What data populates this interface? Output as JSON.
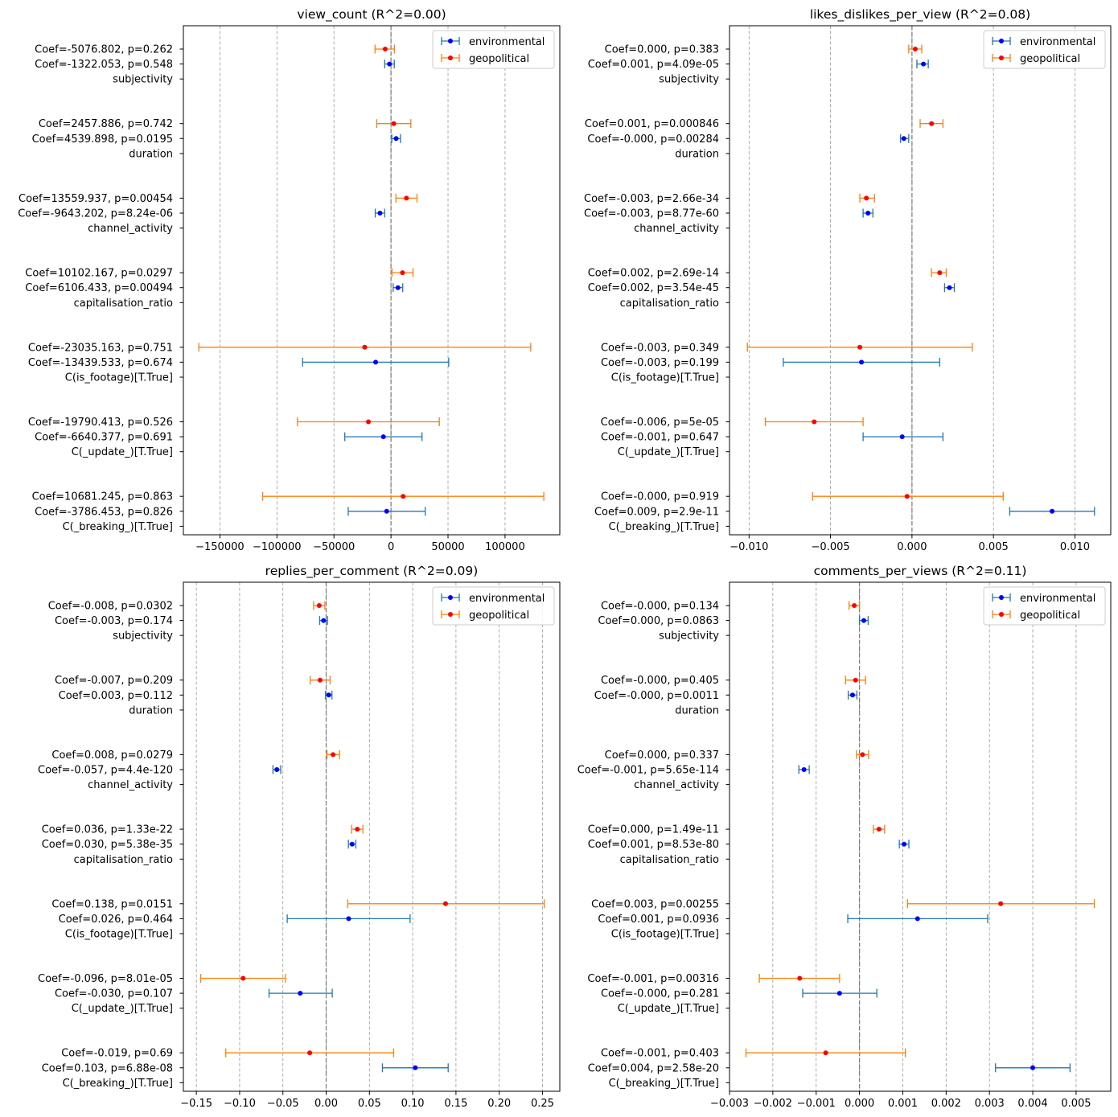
{
  "chart_data": [
    {
      "type": "errorbar",
      "title": "view_count (R^2=0.00)",
      "xlim": [
        -182000,
        148000
      ],
      "xticks": [
        -150000,
        -100000,
        -50000,
        0,
        50000,
        100000
      ],
      "xtick_labels": [
        "−150000",
        "−100000",
        "−50000",
        "0",
        "50000",
        "100000"
      ],
      "grid_x": true,
      "legend_position": "top-right",
      "series": [
        {
          "name": "environmental",
          "color": "#1f77b4",
          "marker_color": "#0000ff"
        },
        {
          "name": "geopolitical",
          "color": "#ff7f0e",
          "marker_color": "#ff0000"
        }
      ],
      "variables": [
        {
          "name": "subjectivity",
          "env": {
            "coef": -1322.053,
            "lo": -5500,
            "hi": 2900,
            "label": "Coef=-1322.053, p=0.548"
          },
          "geo": {
            "coef": -5076.802,
            "lo": -14000,
            "hi": 3000,
            "label": "Coef=-5076.802, p=0.262"
          }
        },
        {
          "name": "duration",
          "env": {
            "coef": 4539.898,
            "lo": 700,
            "hi": 8300,
            "label": "Coef=4539.898, p=0.0195"
          },
          "geo": {
            "coef": 2457.886,
            "lo": -12500,
            "hi": 17400,
            "label": "Coef=2457.886, p=0.742"
          }
        },
        {
          "name": "channel_activity",
          "env": {
            "coef": -9643.202,
            "lo": -13800,
            "hi": -5500,
            "label": "Coef=-9643.202, p=8.24e-06"
          },
          "geo": {
            "coef": 13559.937,
            "lo": 4300,
            "hi": 22800,
            "label": "Coef=13559.937, p=0.00454"
          }
        },
        {
          "name": "capitalisation_ratio",
          "env": {
            "coef": 6106.433,
            "lo": 1900,
            "hi": 10300,
            "label": "Coef=6106.433, p=0.00494"
          },
          "geo": {
            "coef": 10102.167,
            "lo": 900,
            "hi": 19300,
            "label": "Coef=10102.167, p=0.0297"
          }
        },
        {
          "name": "C(is_footage)[T.True]",
          "env": {
            "coef": -13439.533,
            "lo": -77500,
            "hi": 50600,
            "label": "Coef=-13439.533, p=0.674"
          },
          "geo": {
            "coef": -23035.163,
            "lo": -168500,
            "hi": 122500,
            "label": "Coef=-23035.163, p=0.751"
          }
        },
        {
          "name": "C(_update_)[T.True]",
          "env": {
            "coef": -6640.377,
            "lo": -40500,
            "hi": 27200,
            "label": "Coef=-6640.377, p=0.691"
          },
          "geo": {
            "coef": -19790.413,
            "lo": -82000,
            "hi": 42400,
            "label": "Coef=-19790.413, p=0.526"
          }
        },
        {
          "name": "C(_breaking_)[T.True]",
          "env": {
            "coef": -3786.453,
            "lo": -37500,
            "hi": 30000,
            "label": "Coef=-3786.453, p=0.826"
          },
          "geo": {
            "coef": 10681.245,
            "lo": -112500,
            "hi": 134000,
            "label": "Coef=10681.245, p=0.863"
          }
        }
      ]
    },
    {
      "type": "errorbar",
      "title": "likes_dislikes_per_view (R^2=0.08)",
      "xlim": [
        -0.0112,
        0.0122
      ],
      "xticks": [
        -0.01,
        -0.005,
        0,
        0.005,
        0.01
      ],
      "xtick_labels": [
        "−0.010",
        "−0.005",
        "0.000",
        "0.005",
        "0.010"
      ],
      "grid_x": true,
      "legend_position": "top-right",
      "series": [
        {
          "name": "environmental",
          "color": "#1f77b4",
          "marker_color": "#0000ff"
        },
        {
          "name": "geopolitical",
          "color": "#ff7f0e",
          "marker_color": "#ff0000"
        }
      ],
      "variables": [
        {
          "name": "subjectivity",
          "env": {
            "coef": 0.0007,
            "lo": 0.0003,
            "hi": 0.001,
            "label": "Coef=0.001, p=4.09e-05"
          },
          "geo": {
            "coef": 0.0002,
            "lo": -0.0002,
            "hi": 0.0006,
            "label": "Coef=0.000, p=0.383"
          }
        },
        {
          "name": "duration",
          "env": {
            "coef": -0.0005,
            "lo": -0.0007,
            "hi": -0.0002,
            "label": "Coef=-0.000, p=0.00284"
          },
          "geo": {
            "coef": 0.0012,
            "lo": 0.0005,
            "hi": 0.0019,
            "label": "Coef=0.001, p=0.000846"
          }
        },
        {
          "name": "channel_activity",
          "env": {
            "coef": -0.0027,
            "lo": -0.003,
            "hi": -0.0024,
            "label": "Coef=-0.003, p=8.77e-60"
          },
          "geo": {
            "coef": -0.0028,
            "lo": -0.0032,
            "hi": -0.0023,
            "label": "Coef=-0.003, p=2.66e-34"
          }
        },
        {
          "name": "capitalisation_ratio",
          "env": {
            "coef": 0.0023,
            "lo": 0.002,
            "hi": 0.0026,
            "label": "Coef=0.002, p=3.54e-45"
          },
          "geo": {
            "coef": 0.0017,
            "lo": 0.0012,
            "hi": 0.0021,
            "label": "Coef=0.002, p=2.69e-14"
          }
        },
        {
          "name": "C(is_footage)[T.True]",
          "env": {
            "coef": -0.0031,
            "lo": -0.0079,
            "hi": 0.0017,
            "label": "Coef=-0.003, p=0.199"
          },
          "geo": {
            "coef": -0.0032,
            "lo": -0.0101,
            "hi": 0.0037,
            "label": "Coef=-0.003, p=0.349"
          }
        },
        {
          "name": "C(_update_)[T.True]",
          "env": {
            "coef": -0.0006,
            "lo": -0.003,
            "hi": 0.0019,
            "label": "Coef=-0.001, p=0.647"
          },
          "geo": {
            "coef": -0.006,
            "lo": -0.009,
            "hi": -0.003,
            "label": "Coef=-0.006, p=5e-05"
          }
        },
        {
          "name": "C(_breaking_)[T.True]",
          "env": {
            "coef": 0.0086,
            "lo": 0.006,
            "hi": 0.0112,
            "label": "Coef=0.009, p=2.9e-11"
          },
          "geo": {
            "coef": -0.0003,
            "lo": -0.0061,
            "hi": 0.0056,
            "label": "Coef=-0.000, p=0.919"
          }
        }
      ]
    },
    {
      "type": "errorbar",
      "title": "replies_per_comment (R^2=0.09)",
      "xlim": [
        -0.165,
        0.27
      ],
      "xticks": [
        -0.15,
        -0.1,
        -0.05,
        0,
        0.05,
        0.1,
        0.15,
        0.2,
        0.25
      ],
      "xtick_labels": [
        "−0.15",
        "−0.10",
        "−0.05",
        "0.00",
        "0.05",
        "0.10",
        "0.15",
        "0.20",
        "0.25"
      ],
      "grid_x": true,
      "legend_position": "top-right",
      "series": [
        {
          "name": "environmental",
          "color": "#1f77b4",
          "marker_color": "#0000ff"
        },
        {
          "name": "geopolitical",
          "color": "#ff7f0e",
          "marker_color": "#ff0000"
        }
      ],
      "variables": [
        {
          "name": "subjectivity",
          "env": {
            "coef": -0.003,
            "lo": -0.0075,
            "hi": 0.0015,
            "label": "Coef=-0.003, p=0.174"
          },
          "geo": {
            "coef": -0.008,
            "lo": -0.0145,
            "hi": -0.0015,
            "label": "Coef=-0.008, p=0.0302"
          }
        },
        {
          "name": "duration",
          "env": {
            "coef": 0.003,
            "lo": -0.0007,
            "hi": 0.0067,
            "label": "Coef=0.003, p=0.112"
          },
          "geo": {
            "coef": -0.007,
            "lo": -0.0185,
            "hi": 0.0045,
            "label": "Coef=-0.007, p=0.209"
          }
        },
        {
          "name": "channel_activity",
          "env": {
            "coef": -0.057,
            "lo": -0.0615,
            "hi": -0.0525,
            "label": "Coef=-0.057, p=4.4e-120"
          },
          "geo": {
            "coef": 0.008,
            "lo": 0.001,
            "hi": 0.0155,
            "label": "Coef=0.008, p=0.0279"
          }
        },
        {
          "name": "capitalisation_ratio",
          "env": {
            "coef": 0.03,
            "lo": 0.0257,
            "hi": 0.0343,
            "label": "Coef=0.030, p=5.38e-35"
          },
          "geo": {
            "coef": 0.036,
            "lo": 0.0295,
            "hi": 0.0425,
            "label": "Coef=0.036, p=1.33e-22"
          }
        },
        {
          "name": "C(is_footage)[T.True]",
          "env": {
            "coef": 0.026,
            "lo": -0.045,
            "hi": 0.097,
            "label": "Coef=0.026, p=0.464"
          },
          "geo": {
            "coef": 0.138,
            "lo": 0.025,
            "hi": 0.252,
            "label": "Coef=0.138, p=0.0151"
          }
        },
        {
          "name": "C(_update_)[T.True]",
          "env": {
            "coef": -0.03,
            "lo": -0.066,
            "hi": 0.007,
            "label": "Coef=-0.030, p=0.107"
          },
          "geo": {
            "coef": -0.096,
            "lo": -0.145,
            "hi": -0.047,
            "label": "Coef=-0.096, p=8.01e-05"
          }
        },
        {
          "name": "C(_breaking_)[T.True]",
          "env": {
            "coef": 0.103,
            "lo": 0.065,
            "hi": 0.141,
            "label": "Coef=0.103, p=6.88e-08"
          },
          "geo": {
            "coef": -0.019,
            "lo": -0.116,
            "hi": 0.078,
            "label": "Coef=-0.019, p=0.69"
          }
        }
      ]
    },
    {
      "type": "errorbar",
      "title": "comments_per_views (R^2=0.11)",
      "xlim": [
        -0.003,
        0.0058
      ],
      "xticks": [
        -0.003,
        -0.002,
        -0.001,
        0,
        0.001,
        0.002,
        0.003,
        0.004,
        0.005
      ],
      "xtick_labels": [
        "−0.003",
        "−0.002",
        "−0.001",
        "0.000",
        "0.001",
        "0.002",
        "0.003",
        "0.004",
        "0.005"
      ],
      "grid_x": true,
      "legend_position": "top-right",
      "series": [
        {
          "name": "environmental",
          "color": "#1f77b4",
          "marker_color": "#0000ff"
        },
        {
          "name": "geopolitical",
          "color": "#ff7f0e",
          "marker_color": "#ff0000"
        }
      ],
      "variables": [
        {
          "name": "subjectivity",
          "env": {
            "coef": 0.0001,
            "lo": 0.0,
            "hi": 0.0002,
            "label": "Coef=0.000, p=0.0863"
          },
          "geo": {
            "coef": -0.00012,
            "lo": -0.00024,
            "hi": 0.0,
            "label": "Coef=-0.000, p=0.134"
          }
        },
        {
          "name": "duration",
          "env": {
            "coef": -0.00016,
            "lo": -0.00026,
            "hi": -6e-05,
            "label": "Coef=-0.000, p=0.0011"
          },
          "geo": {
            "coef": -9e-05,
            "lo": -0.00032,
            "hi": 0.00014,
            "label": "Coef=-0.000, p=0.405"
          }
        },
        {
          "name": "channel_activity",
          "env": {
            "coef": -0.00128,
            "lo": -0.0014,
            "hi": -0.00116,
            "label": "Coef=-0.001, p=5.65e-114"
          },
          "geo": {
            "coef": 7e-05,
            "lo": -7e-05,
            "hi": 0.00021,
            "label": "Coef=0.000, p=0.337"
          }
        },
        {
          "name": "capitalisation_ratio",
          "env": {
            "coef": 0.00103,
            "lo": 0.00092,
            "hi": 0.00114,
            "label": "Coef=0.001, p=8.53e-80"
          },
          "geo": {
            "coef": 0.00045,
            "lo": 0.00032,
            "hi": 0.00058,
            "label": "Coef=0.000, p=1.49e-11"
          }
        },
        {
          "name": "C(is_footage)[T.True]",
          "env": {
            "coef": 0.00134,
            "lo": -0.00027,
            "hi": 0.00296,
            "label": "Coef=0.001, p=0.0936"
          },
          "geo": {
            "coef": 0.00326,
            "lo": 0.00111,
            "hi": 0.00542,
            "label": "Coef=0.003, p=0.00255"
          }
        },
        {
          "name": "C(_update_)[T.True]",
          "env": {
            "coef": -0.00046,
            "lo": -0.00131,
            "hi": 0.0004,
            "label": "Coef=-0.000, p=0.281"
          },
          "geo": {
            "coef": -0.00138,
            "lo": -0.00231,
            "hi": -0.00046,
            "label": "Coef=-0.001, p=0.00316"
          }
        },
        {
          "name": "C(_breaking_)[T.True]",
          "env": {
            "coef": 0.004,
            "lo": 0.00314,
            "hi": 0.00486,
            "label": "Coef=0.004, p=2.58e-20"
          },
          "geo": {
            "coef": -0.00078,
            "lo": -0.00262,
            "hi": 0.00106,
            "label": "Coef=-0.001, p=0.403"
          }
        }
      ]
    }
  ]
}
